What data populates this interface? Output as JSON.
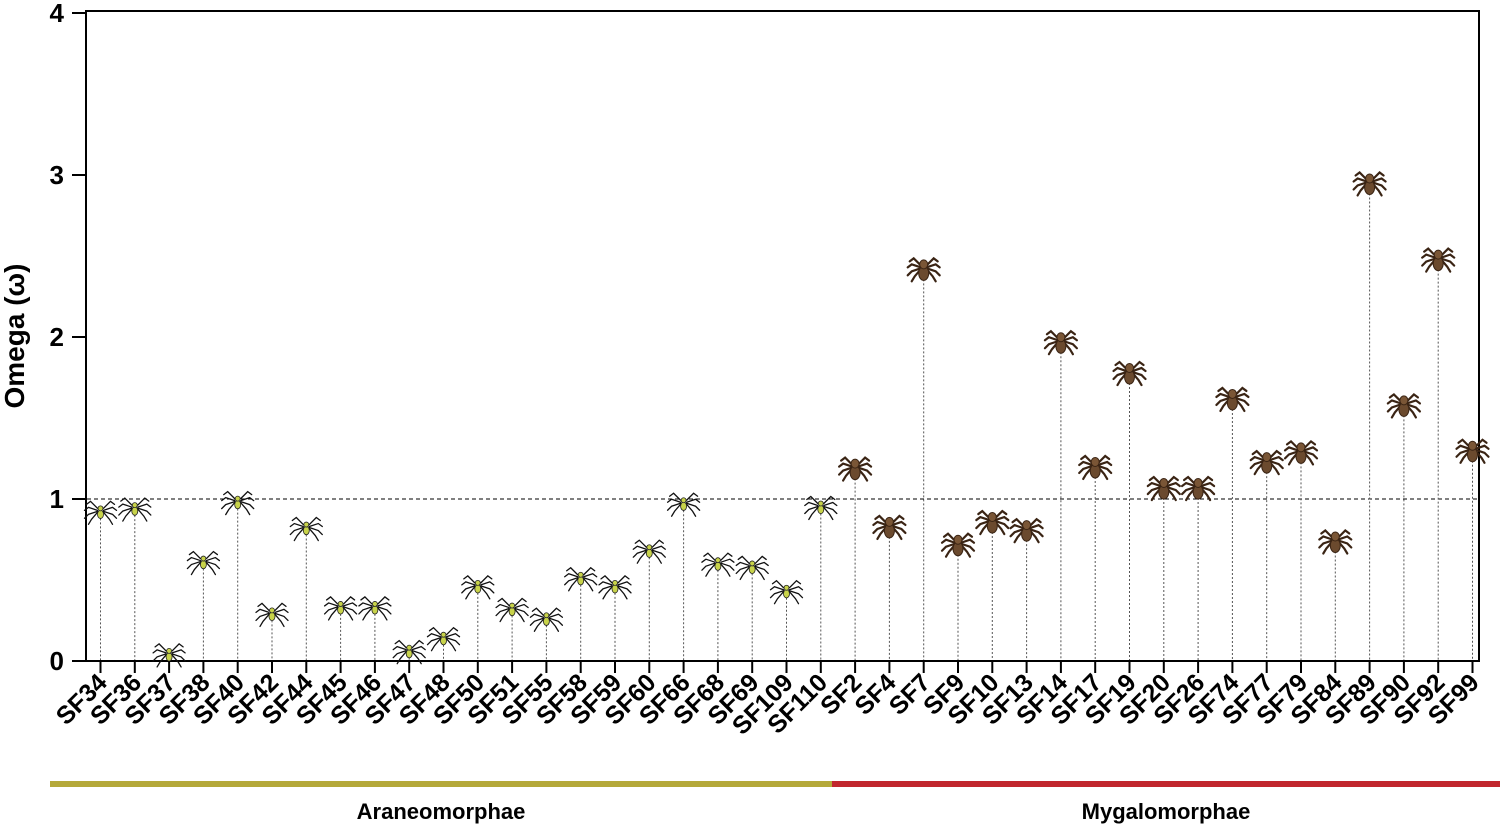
{
  "chart_data": {
    "type": "scatter",
    "ylabel": "Omega (ω)",
    "ylim": [
      0,
      4
    ],
    "yticks": [
      "0",
      "1",
      "2",
      "3",
      "4"
    ],
    "reference_line": 1,
    "categories": [
      "SF34",
      "SF36",
      "SF37",
      "SF38",
      "SF40",
      "SF42",
      "SF44",
      "SF45",
      "SF46",
      "SF47",
      "SF48",
      "SF50",
      "SF51",
      "SF55",
      "SF58",
      "SF59",
      "SF60",
      "SF66",
      "SF68",
      "SF69",
      "SF109",
      "SF110",
      "SF2",
      "SF4",
      "SF7",
      "SF9",
      "SF10",
      "SF13",
      "SF14",
      "SF17",
      "SF19",
      "SF20",
      "SF26",
      "SF74",
      "SF77",
      "SF79",
      "SF84",
      "SF89",
      "SF90",
      "SF92",
      "SF99"
    ],
    "values": [
      0.93,
      0.95,
      0.05,
      0.62,
      0.99,
      0.3,
      0.83,
      0.34,
      0.34,
      0.07,
      0.15,
      0.47,
      0.33,
      0.27,
      0.52,
      0.47,
      0.69,
      0.98,
      0.61,
      0.59,
      0.44,
      0.96,
      1.2,
      0.84,
      2.43,
      0.73,
      0.87,
      0.82,
      1.98,
      1.21,
      1.79,
      1.08,
      1.08,
      1.63,
      1.24,
      1.3,
      0.75,
      2.96,
      1.59,
      2.49,
      1.31
    ],
    "groups": [
      {
        "name": "Araneomorphae",
        "start": 0,
        "end": 21,
        "color": "#b5a93a",
        "marker_color": "#c8d34a"
      },
      {
        "name": "Mygalomorphae",
        "start": 22,
        "end": 40,
        "color": "#c1272d",
        "marker_color": "#6b4a2e"
      }
    ]
  }
}
